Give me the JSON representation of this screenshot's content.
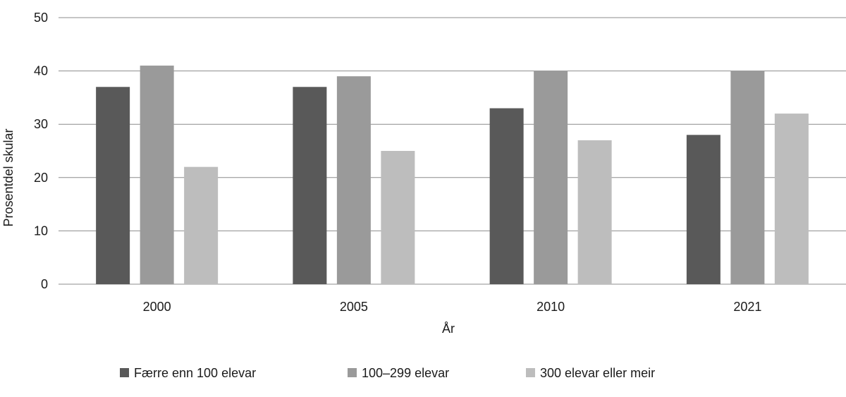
{
  "chart_data": {
    "type": "bar",
    "categories": [
      "2000",
      "2005",
      "2010",
      "2021"
    ],
    "series": [
      {
        "name": "Færre enn 100 elevar",
        "values": [
          37,
          37,
          33,
          28
        ],
        "color": "#595959"
      },
      {
        "name": "100–299 elevar",
        "values": [
          41,
          39,
          40,
          40
        ],
        "color": "#9a9a9a"
      },
      {
        "name": "300 elevar eller meir",
        "values": [
          22,
          25,
          27,
          32
        ],
        "color": "#bdbdbd"
      }
    ],
    "xlabel": "År",
    "ylabel": "Prosentdel skular",
    "ylim": [
      0,
      50
    ],
    "yticks": [
      0,
      10,
      20,
      30,
      40,
      50
    ],
    "grid": true,
    "legend_position": "bottom"
  }
}
